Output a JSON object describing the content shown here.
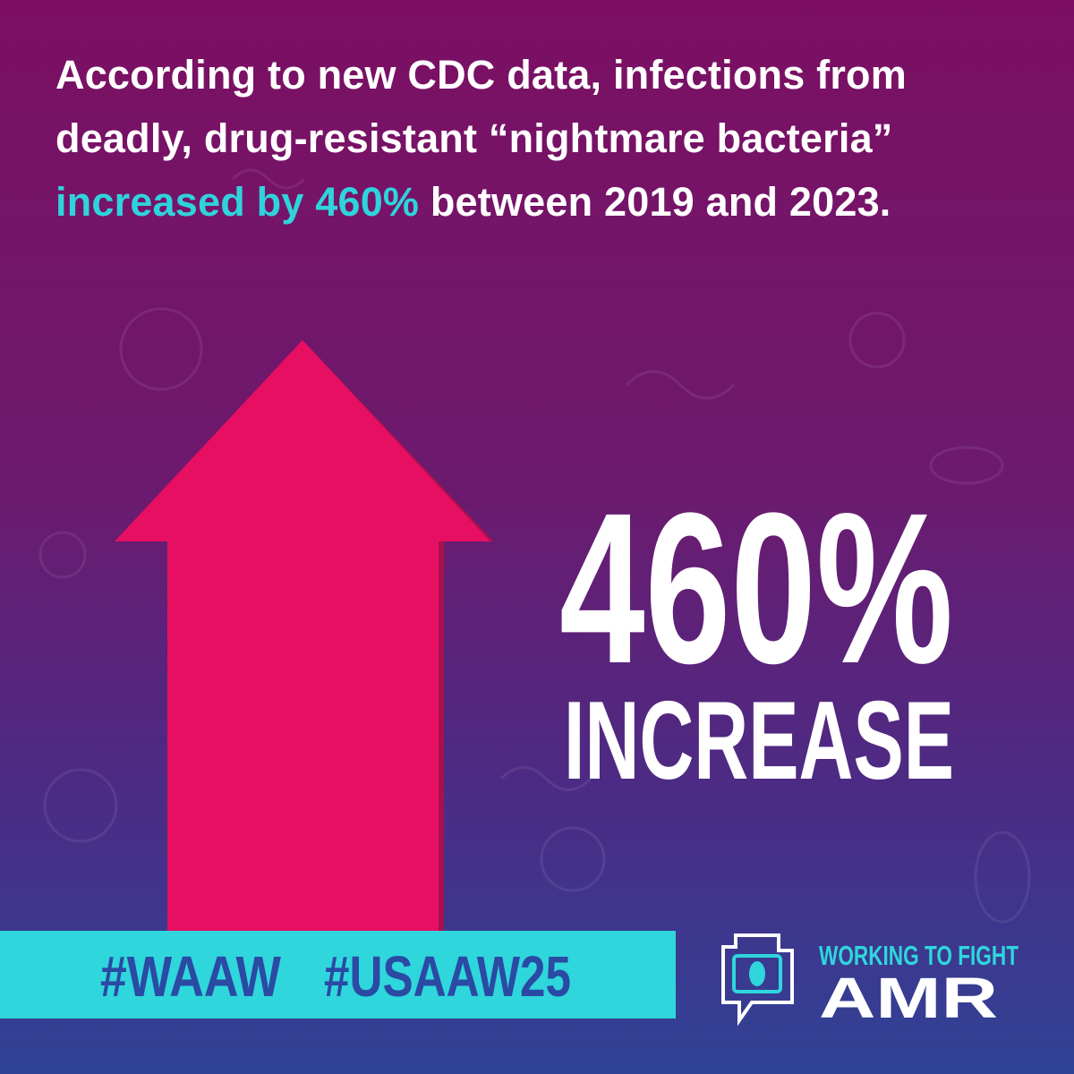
{
  "headline": {
    "before": "According to new CDC data, infections from deadly, drug-resistant “nightmare bacteria” ",
    "highlight": "increased by 460%",
    "after": " between 2019 and 2023."
  },
  "stat": {
    "value": "460%",
    "label": "INCREASE"
  },
  "hashtags": [
    "#WAAW",
    "#USAAW25"
  ],
  "logo": {
    "tagline": "WORKING TO FIGHT",
    "name": "AMR"
  }
}
